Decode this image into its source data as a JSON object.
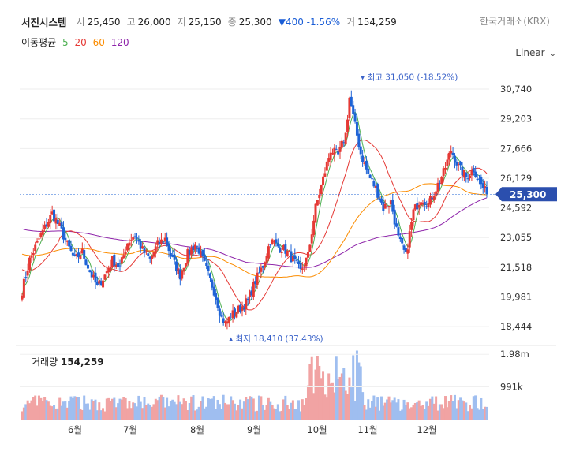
{
  "header": {
    "name": "서진시스템",
    "open_label": "시",
    "open": "25,450",
    "high_label": "고",
    "high": "26,000",
    "low_label": "저",
    "low": "25,150",
    "close_label": "종",
    "close": "25,300",
    "change": "▼400 -1.56%",
    "volume_label": "거",
    "volume": "154,259"
  },
  "exchange": "한국거래소(KRX)",
  "moving_average": {
    "label": "이동평균",
    "periods": [
      {
        "value": "5",
        "color": "#4caf50"
      },
      {
        "value": "20",
        "color": "#e53935"
      },
      {
        "value": "60",
        "color": "#fb8c00"
      },
      {
        "value": "120",
        "color": "#8e24aa"
      }
    ]
  },
  "scale_selector": {
    "label": "Linear",
    "icon": "chevron-down-icon"
  },
  "volume_panel": {
    "title": "거래량",
    "value": "154,259"
  },
  "chart_data": {
    "type": "candlestick",
    "price_axis": {
      "ticks": [
        30740,
        29203,
        27666,
        26129,
        24592,
        23055,
        21518,
        19981,
        18444
      ],
      "ylim": [
        18000,
        31600
      ]
    },
    "current_price": {
      "value": 25300,
      "label": "25,300"
    },
    "annotations": {
      "high": {
        "text": "최고 31,050 (-18.52%)",
        "value": 31050
      },
      "low": {
        "text": "최저 18,410 (37.43%)",
        "value": 18410
      }
    },
    "x_ticks": [
      "6월",
      "7월",
      "8월",
      "9월",
      "10월",
      "11월",
      "12월"
    ],
    "volume_axis": {
      "ticks": [
        "1.98m",
        "991k"
      ],
      "values": [
        1980000,
        991000
      ]
    },
    "colors": {
      "up": "#e53935",
      "down": "#1e63d6",
      "ma5": "#4caf50",
      "ma20": "#e53935",
      "ma60": "#fb8c00",
      "ma120": "#8e24aa"
    },
    "close_waypoints": [
      [
        0,
        20300
      ],
      [
        4,
        21900
      ],
      [
        10,
        23200
      ],
      [
        16,
        24300
      ],
      [
        20,
        23600
      ],
      [
        24,
        22700
      ],
      [
        28,
        21900
      ],
      [
        32,
        22300
      ],
      [
        36,
        21300
      ],
      [
        40,
        20500
      ],
      [
        44,
        21100
      ],
      [
        48,
        21900
      ],
      [
        52,
        21500
      ],
      [
        56,
        22800
      ],
      [
        60,
        23200
      ],
      [
        64,
        22400
      ],
      [
        68,
        21900
      ],
      [
        72,
        22700
      ],
      [
        76,
        23000
      ],
      [
        80,
        21900
      ],
      [
        84,
        21100
      ],
      [
        88,
        22200
      ],
      [
        92,
        22700
      ],
      [
        94,
        22400
      ],
      [
        98,
        21400
      ],
      [
        102,
        20300
      ],
      [
        106,
        18900
      ],
      [
        108,
        18600
      ],
      [
        112,
        19100
      ],
      [
        116,
        19400
      ],
      [
        120,
        19800
      ],
      [
        124,
        20800
      ],
      [
        128,
        21600
      ],
      [
        132,
        22900
      ],
      [
        136,
        22600
      ],
      [
        140,
        22400
      ],
      [
        144,
        21900
      ],
      [
        148,
        21300
      ],
      [
        152,
        22100
      ],
      [
        156,
        24600
      ],
      [
        160,
        26100
      ],
      [
        164,
        27600
      ],
      [
        168,
        27300
      ],
      [
        172,
        28400
      ],
      [
        174,
        30300
      ],
      [
        176,
        29300
      ],
      [
        180,
        27400
      ],
      [
        184,
        26300
      ],
      [
        188,
        25600
      ],
      [
        192,
        24600
      ],
      [
        196,
        24900
      ],
      [
        200,
        23000
      ],
      [
        204,
        22100
      ],
      [
        208,
        24400
      ],
      [
        212,
        25100
      ],
      [
        216,
        24800
      ],
      [
        220,
        25600
      ],
      [
        224,
        26400
      ],
      [
        228,
        27600
      ],
      [
        232,
        26700
      ],
      [
        236,
        26200
      ],
      [
        240,
        26600
      ],
      [
        244,
        25800
      ],
      [
        247,
        25300
      ]
    ]
  }
}
